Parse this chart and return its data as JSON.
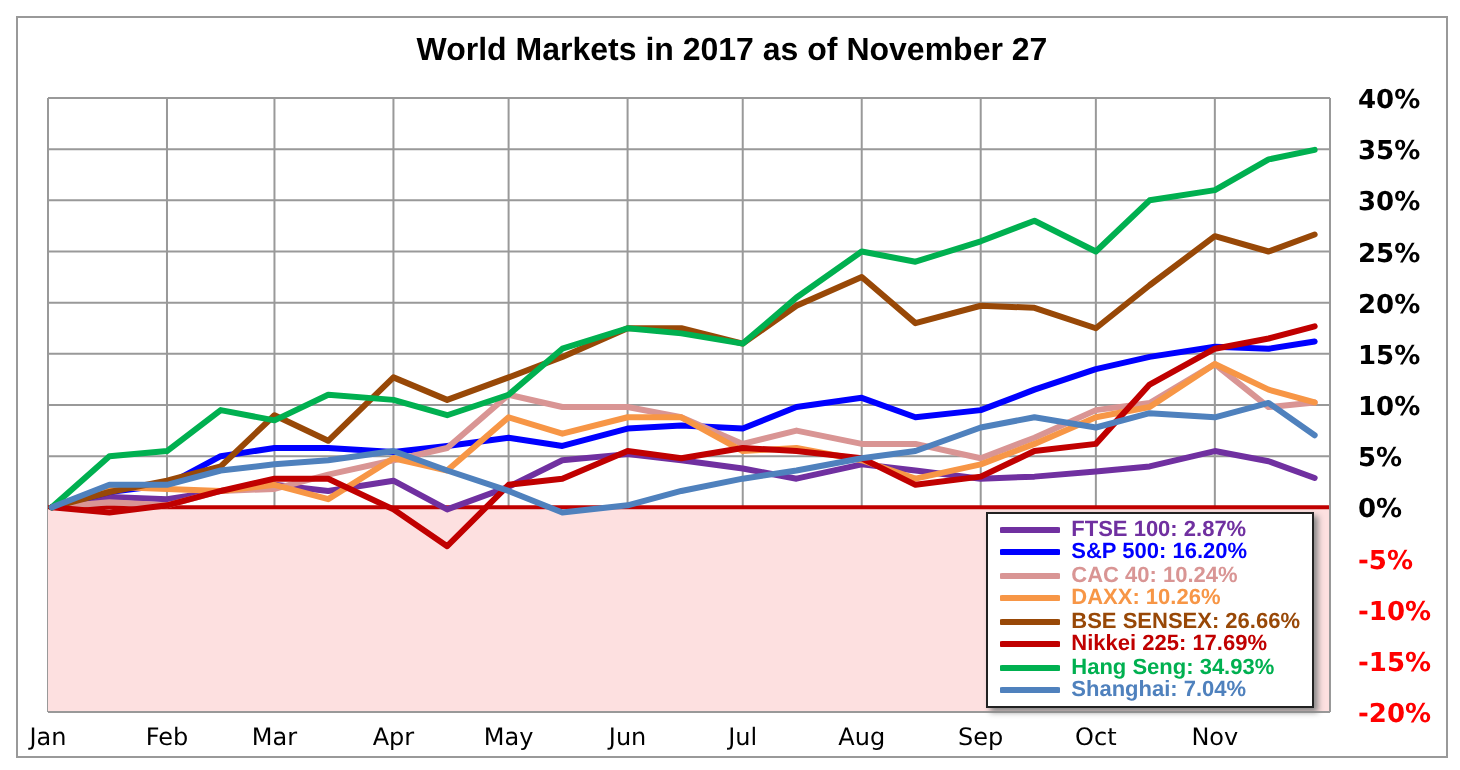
{
  "chart_data": {
    "type": "line",
    "title": "World Markets in 2017 as of November 27",
    "x": [
      "2017-01-02",
      "2017-01-17",
      "2017-02-01",
      "2017-02-15",
      "2017-03-01",
      "2017-03-15",
      "2017-04-01",
      "2017-04-15",
      "2017-05-01",
      "2017-05-15",
      "2017-06-01",
      "2017-06-15",
      "2017-07-01",
      "2017-07-15",
      "2017-08-01",
      "2017-08-15",
      "2017-09-01",
      "2017-09-15",
      "2017-10-01",
      "2017-10-15",
      "2017-11-01",
      "2017-11-15",
      "2017-11-27"
    ],
    "series": [
      {
        "name": "FTSE 100: 2.87%",
        "color": "#7030a0",
        "values": [
          0,
          1,
          0.8,
          1.6,
          2.2,
          1.6,
          2.6,
          -0.2,
          2,
          4.6,
          5.2,
          4.6,
          3.8,
          2.8,
          4.2,
          3.6,
          2.8,
          3,
          3.5,
          4,
          5.5,
          4.5,
          2.87
        ]
      },
      {
        "name": "S&P 500: 16.20%",
        "color": "#0000ff",
        "values": [
          0,
          1.5,
          2.2,
          5,
          5.8,
          5.8,
          5.4,
          6,
          6.8,
          6,
          7.7,
          8,
          7.7,
          9.8,
          10.7,
          8.8,
          9.5,
          11.5,
          13.5,
          14.7,
          15.7,
          15.5,
          16.2
        ]
      },
      {
        "name": "CAC 40: 10.24%",
        "color": "#d99594",
        "values": [
          0,
          0.5,
          0.2,
          1.6,
          1.8,
          3.2,
          4.6,
          5.8,
          11,
          9.8,
          9.8,
          8.8,
          6.2,
          7.5,
          6.2,
          6.2,
          4.8,
          6.8,
          9.5,
          10.2,
          14,
          9.8,
          10.24
        ]
      },
      {
        "name": "DAXX: 10.26%",
        "color": "#f79646",
        "values": [
          0,
          2,
          1.8,
          1.6,
          2.2,
          0.8,
          4.8,
          3.6,
          8.8,
          7.2,
          8.8,
          8.8,
          5.5,
          5.8,
          4.6,
          2.8,
          4.2,
          6.2,
          8.8,
          9.8,
          14,
          11.5,
          10.26
        ]
      },
      {
        "name": "BSE SENSEX: 26.66%",
        "color": "#984807",
        "values": [
          0,
          1.5,
          2.6,
          4,
          9,
          6.5,
          12.7,
          10.5,
          12.7,
          14.7,
          17.5,
          17.5,
          16,
          19.7,
          22.5,
          18,
          19.7,
          19.5,
          17.5,
          21.7,
          26.5,
          25,
          26.66
        ]
      },
      {
        "name": "Nikkei 225: 17.69%",
        "color": "#c00000",
        "values": [
          0,
          -0.5,
          0.2,
          1.6,
          2.8,
          2.8,
          -0.2,
          -3.8,
          2.2,
          2.8,
          5.5,
          4.8,
          5.8,
          5.5,
          4.8,
          2.2,
          3,
          5.5,
          6.2,
          12,
          15.5,
          16.5,
          17.69
        ]
      },
      {
        "name": "Hang Seng: 34.93%",
        "color": "#00b050",
        "values": [
          0,
          5,
          5.5,
          9.5,
          8.5,
          11,
          10.5,
          9,
          11,
          15.5,
          17.5,
          17,
          16,
          20.5,
          25,
          24,
          26,
          28,
          25,
          30,
          31,
          34,
          34.93
        ]
      },
      {
        "name": "Shanghai: 7.04%",
        "color": "#4f81bd",
        "values": [
          0,
          2.2,
          2.2,
          3.6,
          4.2,
          4.6,
          5.5,
          3.6,
          1.6,
          -0.5,
          0.2,
          1.6,
          2.8,
          3.6,
          4.8,
          5.5,
          7.8,
          8.8,
          7.8,
          9.2,
          8.8,
          10.2,
          7.04
        ]
      }
    ],
    "xlim": [
      "2017-01-01",
      "2017-12-01"
    ],
    "xticks": [
      {
        "value": "2017-01-01",
        "label": "Jan"
      },
      {
        "value": "2017-02-01",
        "label": "Feb"
      },
      {
        "value": "2017-03-01",
        "label": "Mar"
      },
      {
        "value": "2017-04-01",
        "label": "Apr"
      },
      {
        "value": "2017-05-01",
        "label": "May"
      },
      {
        "value": "2017-06-01",
        "label": "Jun"
      },
      {
        "value": "2017-07-01",
        "label": "Jul"
      },
      {
        "value": "2017-08-01",
        "label": "Aug"
      },
      {
        "value": "2017-09-01",
        "label": "Sep"
      },
      {
        "value": "2017-10-01",
        "label": "Oct"
      },
      {
        "value": "2017-11-01",
        "label": "Nov"
      }
    ],
    "ylim": [
      -20,
      40
    ],
    "yticks": [
      {
        "value": -20,
        "label": "-20%"
      },
      {
        "value": -15,
        "label": "-15%"
      },
      {
        "value": -10,
        "label": "-10%"
      },
      {
        "value": -5,
        "label": "-5%"
      },
      {
        "value": 0,
        "label": "0%"
      },
      {
        "value": 5,
        "label": "5%"
      },
      {
        "value": 10,
        "label": "10%"
      },
      {
        "value": 15,
        "label": "15%"
      },
      {
        "value": 20,
        "label": "20%"
      },
      {
        "value": 25,
        "label": "25%"
      },
      {
        "value": 30,
        "label": "30%"
      },
      {
        "value": 35,
        "label": "35%"
      },
      {
        "value": 40,
        "label": "40%"
      }
    ],
    "bands": [
      {
        "axis": "y",
        "from": -20,
        "to": 0,
        "color": "#fde0e0"
      }
    ],
    "ref_lines": [
      {
        "axis": "y",
        "value": 0,
        "color": "#c00000"
      }
    ],
    "grid": true,
    "legend": "bottom right",
    "marker": "none",
    "line_style": "solid"
  }
}
